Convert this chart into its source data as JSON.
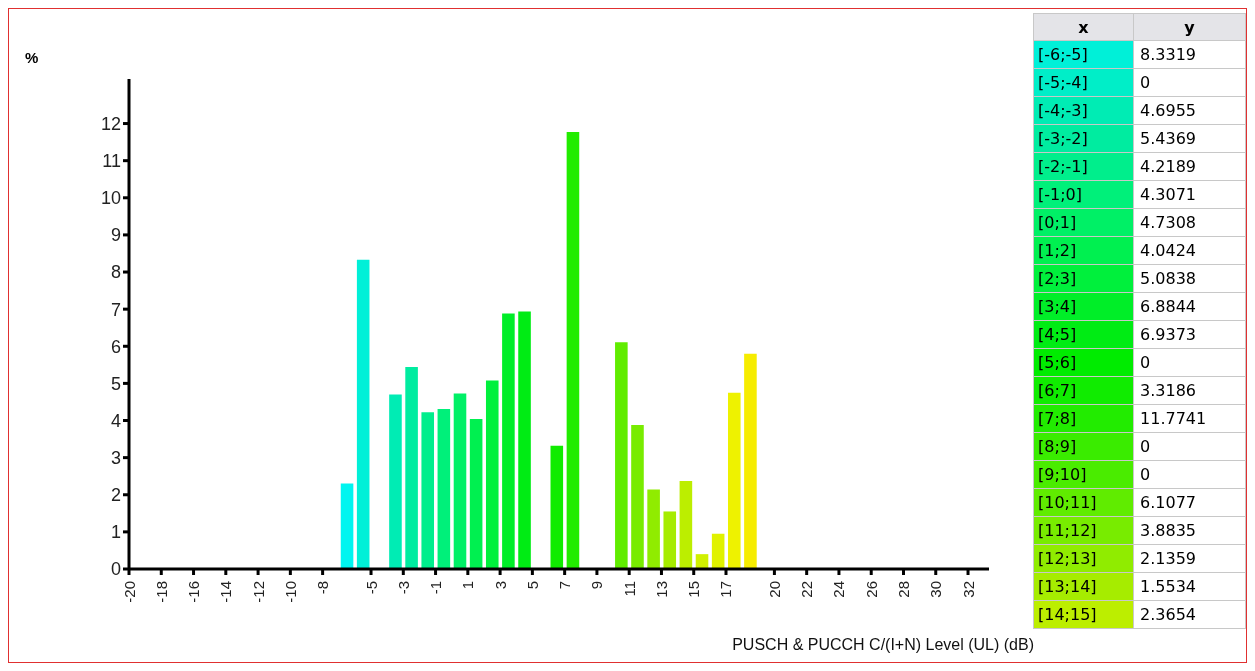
{
  "chart_data": [
    {
      "type": "histogram",
      "xlabel": "PUSCH & PUCCH C/(I+N) Level (UL) (dB)",
      "ylabel": "%",
      "bins": [
        -7,
        -6,
        -5,
        -4,
        -3,
        -2,
        -1,
        0,
        1,
        2,
        3,
        4,
        5,
        6,
        7,
        8,
        9,
        10,
        11,
        12,
        13,
        14,
        15,
        16,
        17,
        18,
        19
      ],
      "values": [
        2.3,
        8.33,
        0,
        4.7,
        5.44,
        4.22,
        4.31,
        4.73,
        4.04,
        5.08,
        6.88,
        6.94,
        0,
        3.32,
        11.77,
        0,
        0,
        6.11,
        3.88,
        2.14,
        1.55,
        2.37,
        0.4,
        0.95,
        4.75,
        5.8
      ],
      "colors": [
        "#00f5f0",
        "#00f0d8",
        "#00eec8",
        "#00ecb4",
        "#00eca0",
        "#00ee8c",
        "#00f07a",
        "#00f066",
        "#00f050",
        "#00f03c",
        "#00ee28",
        "#00ec14",
        "#00ec00",
        "#10ec00",
        "#22ec00",
        "#3aec00",
        "#4aec00",
        "#60ec00",
        "#78ec00",
        "#90ec00",
        "#a6ec00",
        "#bcee00",
        "#d0f000",
        "#e0f200",
        "#eef200",
        "#f6ec00"
      ],
      "xlim": [
        -20,
        33.3
      ],
      "xticks": [
        -20,
        -18,
        -16,
        -14,
        -12,
        -10,
        -8,
        -5,
        -3,
        -1,
        1,
        3,
        5,
        7,
        9,
        11,
        13,
        15,
        17,
        20,
        22,
        24,
        26,
        28,
        30,
        32
      ],
      "ylim": [
        0,
        13.2
      ],
      "yticks": [
        0,
        1,
        2,
        3,
        4,
        5,
        6,
        7,
        8,
        9,
        10,
        11,
        12
      ]
    },
    {
      "type": "other",
      "xlabel": "x",
      "ylabel": "y",
      "data_labels": true,
      "categories": [
        "[-6;-5]",
        "[-5;-4]",
        "[-4;-3]",
        "[-3;-2]",
        "[-2;-1]",
        "[-1;0]",
        "[0;1]",
        "[1;2]",
        "[2;3]",
        "[3;4]",
        "[4;5]",
        "[5;6]",
        "[6;7]",
        "[7;8]",
        "[8;9]",
        "[9;10]",
        "[10;11]",
        "[11;12]",
        "[12;13]",
        "[13;14]",
        "[14;15]"
      ],
      "values": [
        8.3319,
        0,
        4.6955,
        5.4369,
        4.2189,
        4.3071,
        4.7308,
        4.0424,
        5.0838,
        6.8844,
        6.9373,
        0,
        3.3186,
        11.7741,
        0,
        0,
        6.1077,
        3.8835,
        2.1359,
        1.5534,
        2.3654
      ],
      "colors": [
        "#00f0d8",
        "#00eec8",
        "#00ecb4",
        "#00eca0",
        "#00ee8c",
        "#00f07a",
        "#00f066",
        "#00f050",
        "#00f03c",
        "#00ee28",
        "#00ec14",
        "#00ec00",
        "#10ec00",
        "#22ec00",
        "#3aec00",
        "#4aec00",
        "#60ec00",
        "#78ec00",
        "#90ec00",
        "#a6ec00",
        "#bcee00"
      ]
    }
  ]
}
